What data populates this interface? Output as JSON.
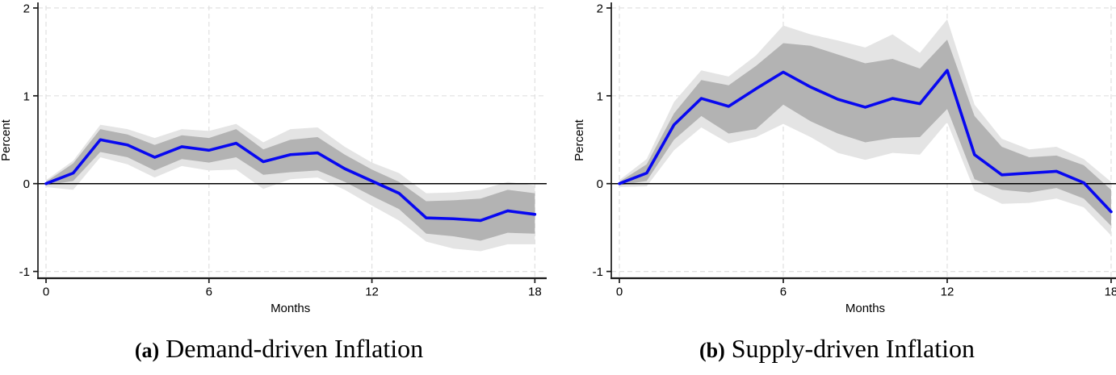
{
  "figure": {
    "captions": {
      "a": {
        "tag": "(a)",
        "title": "Demand-driven Inflation"
      },
      "b": {
        "tag": "(b)",
        "title": "Supply-driven Inflation"
      }
    }
  },
  "colors": {
    "line": "#0808f0",
    "band_inner": "#b3b3b3",
    "band_outer": "#e4e4e4",
    "grid": "#e0e0e0",
    "zero_line": "#000000",
    "axis": "#1a1a1a",
    "text": "#000000"
  },
  "chart_data": [
    {
      "type": "line",
      "panel": "a",
      "title": "Demand-driven Inflation",
      "xlabel": "Months",
      "ylabel": "Percent",
      "x": [
        0,
        1,
        2,
        3,
        4,
        5,
        6,
        7,
        8,
        9,
        10,
        11,
        12,
        13,
        14,
        15,
        16,
        17,
        18
      ],
      "xticks": [
        0,
        6,
        12,
        18
      ],
      "yticks": [
        -1,
        0,
        1,
        2
      ],
      "ylim": [
        -1.1,
        2.05
      ],
      "xlim": [
        0,
        18
      ],
      "grid": "dashed",
      "zero_line": true,
      "legend": "none",
      "series": [
        {
          "name": "impulse response",
          "role": "line",
          "values": [
            0,
            0.12,
            0.5,
            0.44,
            0.3,
            0.42,
            0.38,
            0.46,
            0.25,
            0.33,
            0.35,
            0.17,
            0.03,
            -0.11,
            -0.39,
            -0.4,
            -0.42,
            -0.31,
            -0.35
          ]
        },
        {
          "name": "inner band upper (dark gray)",
          "role": "inner_upper",
          "values": [
            0.02,
            0.23,
            0.62,
            0.56,
            0.44,
            0.55,
            0.52,
            0.62,
            0.39,
            0.5,
            0.53,
            0.33,
            0.16,
            0.02,
            -0.2,
            -0.19,
            -0.17,
            -0.07,
            -0.11
          ]
        },
        {
          "name": "inner band lower (dark gray)",
          "role": "inner_lower",
          "values": [
            -0.02,
            0.03,
            0.36,
            0.3,
            0.15,
            0.28,
            0.24,
            0.3,
            0.1,
            0.13,
            0.15,
            0.02,
            -0.14,
            -0.29,
            -0.57,
            -0.6,
            -0.65,
            -0.56,
            -0.57
          ]
        },
        {
          "name": "outer band upper (light gray)",
          "role": "outer_upper",
          "values": [
            0.04,
            0.26,
            0.67,
            0.62,
            0.52,
            0.62,
            0.6,
            0.68,
            0.47,
            0.62,
            0.64,
            0.42,
            0.24,
            0.12,
            -0.11,
            -0.1,
            -0.07,
            0.02,
            -0.02
          ]
        },
        {
          "name": "outer band lower (light gray)",
          "role": "outer_lower",
          "values": [
            -0.04,
            -0.07,
            0.3,
            0.22,
            0.07,
            0.2,
            0.15,
            0.16,
            -0.06,
            0.05,
            0.07,
            -0.07,
            -0.25,
            -0.42,
            -0.66,
            -0.74,
            -0.77,
            -0.69,
            -0.69
          ]
        }
      ]
    },
    {
      "type": "line",
      "panel": "b",
      "title": "Supply-driven Inflation",
      "xlabel": "Months",
      "ylabel": "Percent",
      "x": [
        0,
        1,
        2,
        3,
        4,
        5,
        6,
        7,
        8,
        9,
        10,
        11,
        12,
        13,
        14,
        15,
        16,
        17,
        18
      ],
      "xticks": [
        0,
        6,
        12,
        18
      ],
      "yticks": [
        -1,
        0,
        1,
        2
      ],
      "ylim": [
        -1.1,
        2.05
      ],
      "xlim": [
        0,
        18
      ],
      "grid": "dashed",
      "zero_line": true,
      "legend": "none",
      "series": [
        {
          "name": "impulse response",
          "role": "line",
          "values": [
            0,
            0.12,
            0.67,
            0.97,
            0.88,
            1.08,
            1.27,
            1.1,
            0.96,
            0.87,
            0.97,
            0.91,
            1.29,
            0.33,
            0.1,
            0.12,
            0.14,
            0.01,
            -0.32
          ]
        },
        {
          "name": "inner band upper (dark gray)",
          "role": "inner_upper",
          "values": [
            0.02,
            0.22,
            0.8,
            1.18,
            1.12,
            1.34,
            1.6,
            1.57,
            1.47,
            1.37,
            1.42,
            1.31,
            1.64,
            0.77,
            0.42,
            0.3,
            0.32,
            0.21,
            -0.07
          ]
        },
        {
          "name": "inner band lower (dark gray)",
          "role": "inner_lower",
          "values": [
            -0.02,
            0.03,
            0.5,
            0.77,
            0.57,
            0.62,
            0.9,
            0.71,
            0.57,
            0.47,
            0.52,
            0.53,
            0.85,
            0.05,
            -0.07,
            -0.1,
            -0.05,
            -0.17,
            -0.48
          ]
        },
        {
          "name": "outer band upper (light gray)",
          "role": "outer_upper",
          "values": [
            0.04,
            0.28,
            0.93,
            1.29,
            1.22,
            1.46,
            1.8,
            1.7,
            1.63,
            1.55,
            1.7,
            1.49,
            1.87,
            0.9,
            0.51,
            0.39,
            0.42,
            0.28,
            0.02
          ]
        },
        {
          "name": "outer band lower (light gray)",
          "role": "outer_lower",
          "values": [
            -0.04,
            -0.03,
            0.38,
            0.64,
            0.46,
            0.53,
            0.68,
            0.53,
            0.35,
            0.27,
            0.35,
            0.33,
            0.7,
            -0.08,
            -0.23,
            -0.22,
            -0.17,
            -0.27,
            -0.59
          ]
        }
      ]
    }
  ]
}
